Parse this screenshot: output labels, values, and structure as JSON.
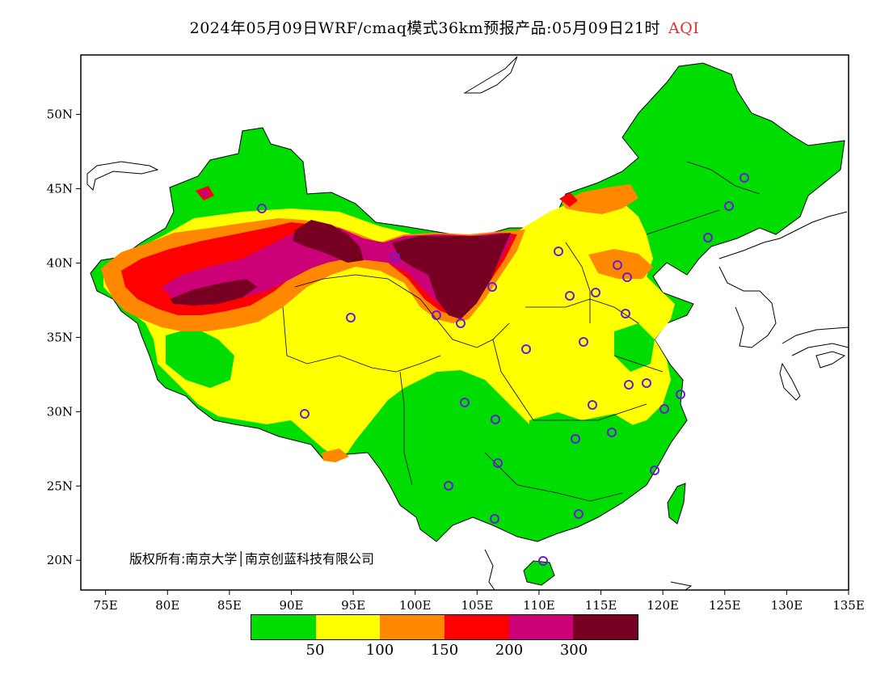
{
  "title": {
    "text": "2024年05月09日WRF/cmaq模式36km预报产品:05月09日21时",
    "variable": "AQI"
  },
  "map": {
    "lon_range": [
      73,
      135
    ],
    "lat_range": [
      18,
      54
    ],
    "x_ticks": [
      "75E",
      "80E",
      "85E",
      "90E",
      "95E",
      "100E",
      "105E",
      "110E",
      "115E",
      "120E",
      "125E",
      "130E",
      "135E"
    ],
    "y_ticks": [
      "20N",
      "25N",
      "30N",
      "35N",
      "40N",
      "45N",
      "50N"
    ],
    "region_fill": "#00dd00",
    "regions": [
      {
        "name": "yellow",
        "aqi_range": "50-100",
        "color": "#ffff00"
      },
      {
        "name": "orange",
        "aqi_range": "100-150",
        "color": "#ff8800"
      },
      {
        "name": "red",
        "aqi_range": "150-200",
        "color": "#ff0000"
      },
      {
        "name": "purple",
        "aqi_range": "200-300",
        "color": "#cc0077"
      },
      {
        "name": "maroon",
        "aqi_range": ">300",
        "color": "#770022"
      }
    ],
    "station_marker_color": "#6a1bd6"
  },
  "copyright": "版权所有:南京大学│南京创蓝科技有限公司",
  "legend": {
    "colors": [
      "#00dd00",
      "#ffff00",
      "#ff8800",
      "#ff0000",
      "#cc0077",
      "#770022"
    ],
    "labels": [
      "50",
      "100",
      "150",
      "200",
      "300"
    ]
  }
}
